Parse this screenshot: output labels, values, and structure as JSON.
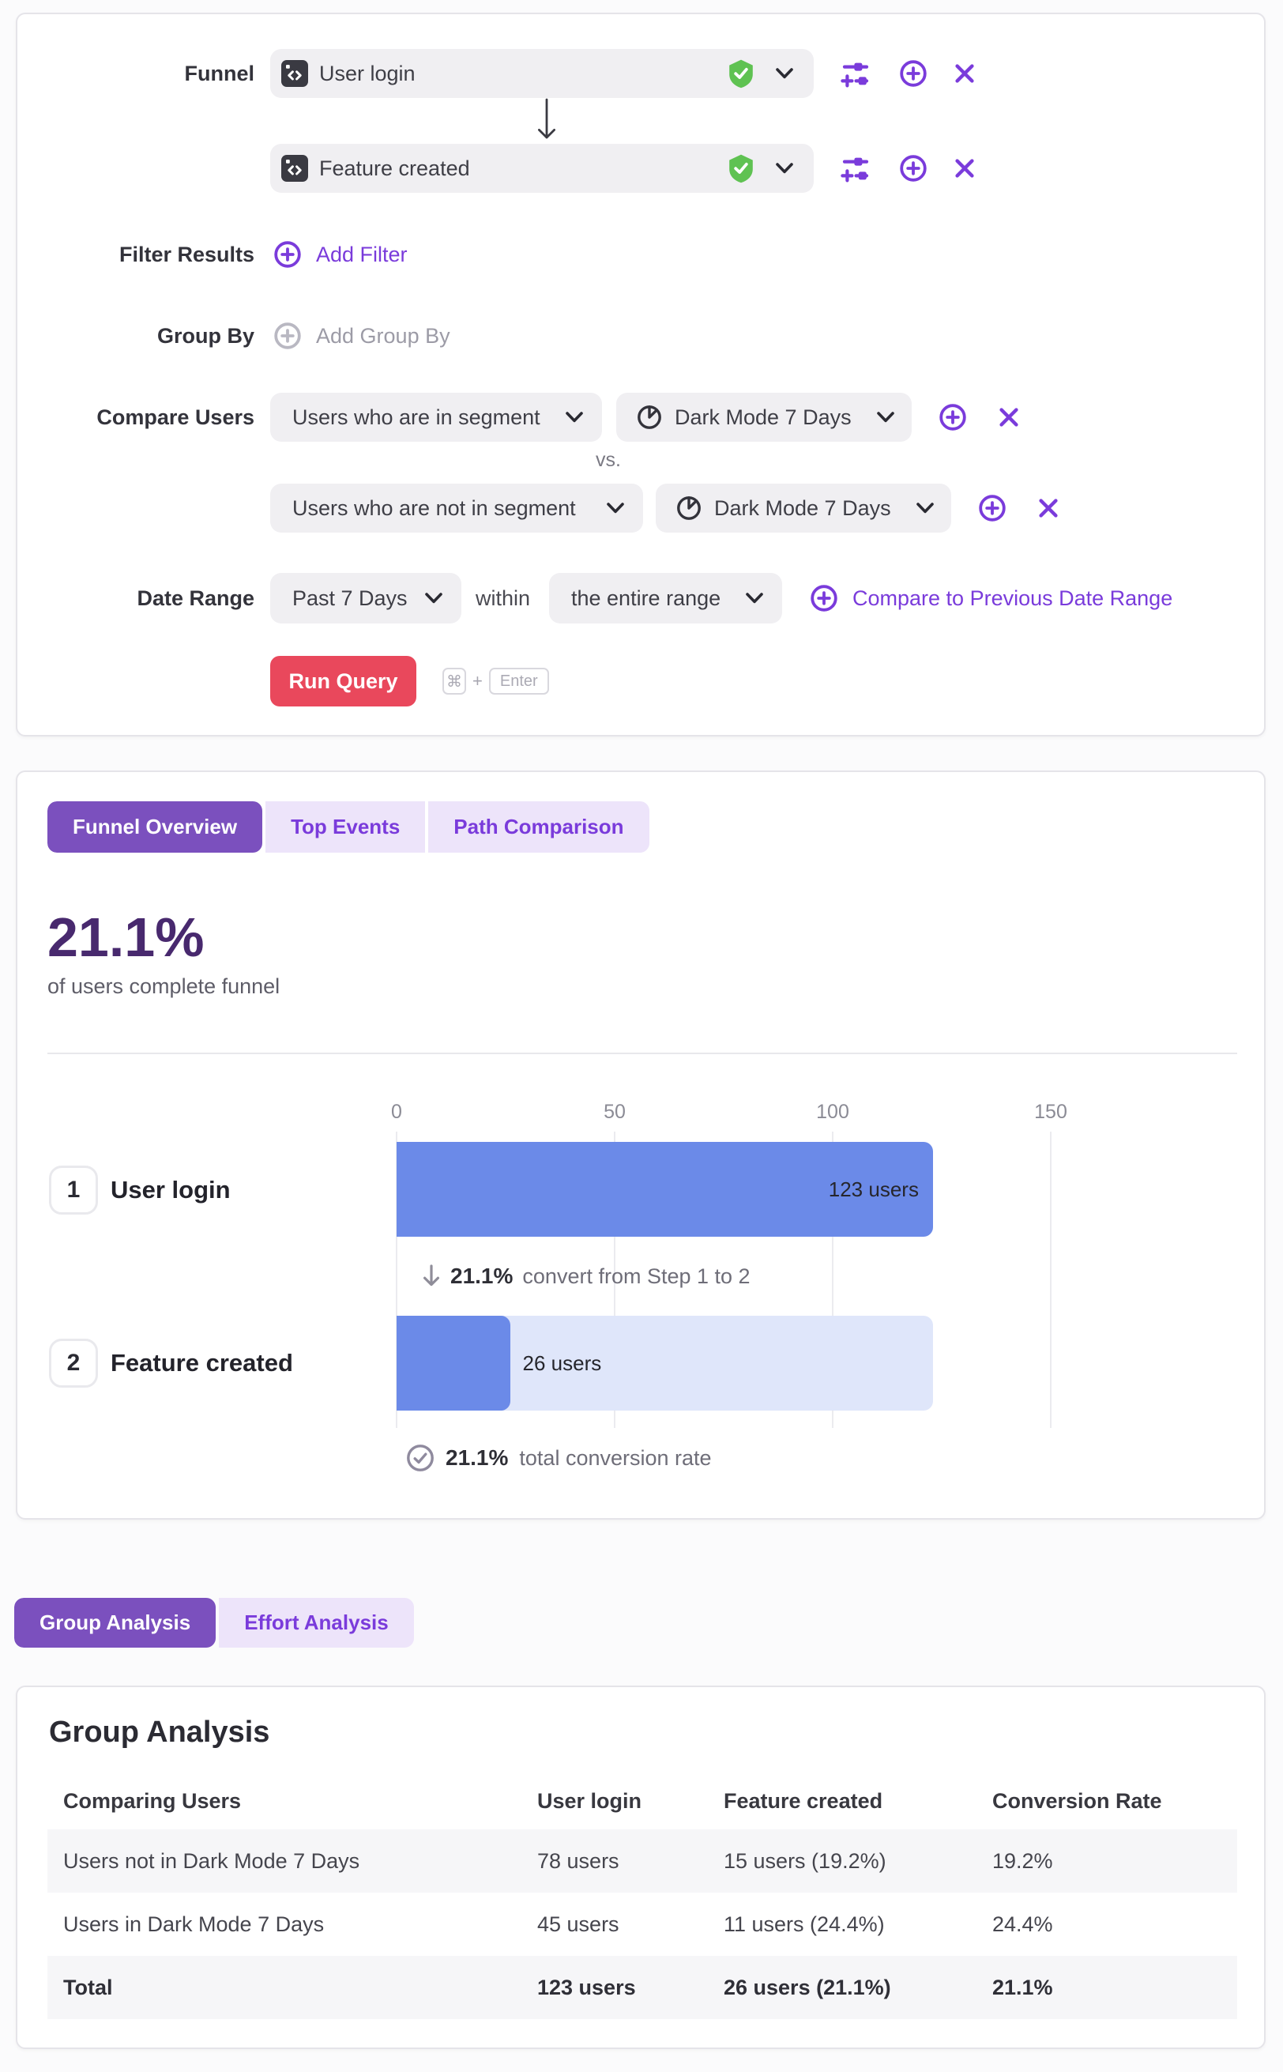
{
  "query": {
    "funnel_label": "Funnel",
    "steps": [
      {
        "name": "User login"
      },
      {
        "name": "Feature created"
      }
    ],
    "filter_results_label": "Filter Results",
    "add_filter_label": "Add Filter",
    "group_by_label": "Group By",
    "add_group_by_label": "Add Group By",
    "compare_users_label": "Compare Users",
    "compare_rows": [
      {
        "selector": "Users who are in segment",
        "segment": "Dark Mode 7 Days"
      },
      {
        "selector": "Users who are not in segment",
        "segment": "Dark Mode 7 Days"
      }
    ],
    "vs_label": "vs.",
    "date_range_label": "Date Range",
    "date_range_value": "Past 7 Days",
    "within_label": "within",
    "date_window_value": "the entire range",
    "compare_previous_label": "Compare to Previous Date Range",
    "run_query_label": "Run Query",
    "shortcut": {
      "cmd": "⌘",
      "plus": "+",
      "enter": "Enter"
    }
  },
  "results": {
    "tabs": [
      {
        "label": "Funnel Overview"
      },
      {
        "label": "Top Events"
      },
      {
        "label": "Path Comparison"
      }
    ],
    "headline_value": "21.1%",
    "headline_caption": "of users complete funnel",
    "step1_to_2_rate": "21.1%",
    "step1_to_2_caption": "convert from Step 1 to 2",
    "total_rate": "21.1%",
    "total_caption": "total conversion rate"
  },
  "chart_data": {
    "type": "bar",
    "orientation": "horizontal",
    "categories": [
      "User login",
      "Feature created"
    ],
    "values": [
      123,
      26
    ],
    "value_labels": [
      "123 users",
      "26 users"
    ],
    "step_numbers": [
      "1",
      "2"
    ],
    "x_ticks": [
      0,
      50,
      100,
      150
    ],
    "xlim": [
      0,
      193
    ],
    "grid": true,
    "annotations": [
      "21.1% convert from Step 1 to 2",
      "21.1% total conversion rate"
    ]
  },
  "analysis_tabs": [
    {
      "label": "Group Analysis"
    },
    {
      "label": "Effort Analysis"
    }
  ],
  "group_analysis": {
    "title": "Group Analysis",
    "columns": [
      "Comparing Users",
      "User login",
      "Feature created",
      "Conversion Rate"
    ],
    "rows": [
      [
        "Users not in Dark Mode 7 Days",
        "78 users",
        "15 users (19.2%)",
        "19.2%"
      ],
      [
        "Users in Dark Mode 7 Days",
        "45 users",
        "11 users (24.4%)",
        "24.4%"
      ],
      [
        "Total",
        "123 users",
        "26 users (21.1%)",
        "21.1%"
      ]
    ]
  },
  "icons": {
    "event": "code-window",
    "verified": "shield-check",
    "expand": "chevron-down",
    "configure": "sliders",
    "add": "plus-circle",
    "remove": "x",
    "segment": "pie-chart",
    "flow": "arrow-down",
    "total": "check-circle"
  },
  "colors": {
    "accent_purple": "#7a3bdb",
    "tab_active_bg": "#7b50be",
    "tab_inactive_bg": "#ede4fa",
    "run_button_red": "#e9485c",
    "bar_blue": "#6b8ae8",
    "bar_light_blue": "#dfe6fa",
    "verified_green": "#5fc252",
    "headline_purple": "#48296e"
  }
}
